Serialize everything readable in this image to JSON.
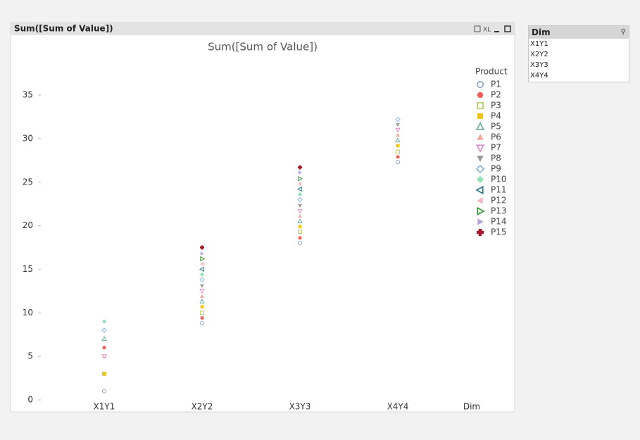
{
  "window_title": "Sum([Sum of Value])",
  "toolbar": {
    "xl_label": "XL"
  },
  "chart_data": {
    "type": "scatter",
    "title": "Sum([Sum of Value])",
    "x_label": "Dim",
    "legend_title": "Product",
    "categories": [
      "X1Y1",
      "X2Y2",
      "X3Y3",
      "X4Y4"
    ],
    "ylim": [
      0,
      38
    ],
    "yticks": [
      0,
      5,
      10,
      15,
      20,
      25,
      30,
      35
    ],
    "grid": false,
    "legend": "right",
    "series": [
      {
        "name": "P1",
        "color": "#8fa6c8",
        "marker": "circle-open",
        "values": [
          1.0,
          8.8,
          18.0,
          27.3
        ]
      },
      {
        "name": "P2",
        "color": "#f0605a",
        "marker": "circle",
        "values": [
          6.0,
          9.4,
          18.6,
          27.9
        ]
      },
      {
        "name": "P3",
        "color": "#b7c95c",
        "marker": "square-open",
        "values": [
          3.0,
          10.0,
          19.3,
          28.5
        ]
      },
      {
        "name": "P4",
        "color": "#f5c518",
        "marker": "square",
        "values": [
          3.0,
          10.7,
          19.9,
          29.2
        ]
      },
      {
        "name": "P5",
        "color": "#6aa79a",
        "marker": "triangle-up-open",
        "values": [
          7.0,
          11.3,
          20.5,
          29.8
        ]
      },
      {
        "name": "P6",
        "color": "#f0a8a0",
        "marker": "triangle-up",
        "values": [
          5.0,
          11.9,
          21.1,
          30.4
        ]
      },
      {
        "name": "P7",
        "color": "#e08cc8",
        "marker": "triangle-down-open",
        "values": [
          5.0,
          12.5,
          21.7,
          31.0
        ]
      },
      {
        "name": "P8",
        "color": "#9a9a9a",
        "marker": "triangle-down",
        "values": [
          null,
          13.1,
          22.3,
          31.6
        ]
      },
      {
        "name": "P9",
        "color": "#86b4d8",
        "marker": "diamond-open",
        "values": [
          8.0,
          13.8,
          23.0,
          32.2
        ]
      },
      {
        "name": "P10",
        "color": "#8fe0b4",
        "marker": "diamond",
        "values": [
          9.0,
          14.4,
          23.6,
          null
        ]
      },
      {
        "name": "P11",
        "color": "#2e7a8c",
        "marker": "triangle-left-open",
        "values": [
          null,
          15.0,
          24.2,
          null
        ]
      },
      {
        "name": "P12",
        "color": "#f4b8c0",
        "marker": "triangle-left",
        "values": [
          null,
          15.6,
          24.8,
          null
        ]
      },
      {
        "name": "P13",
        "color": "#3a9a3a",
        "marker": "triangle-right-open",
        "values": [
          null,
          16.2,
          25.4,
          null
        ]
      },
      {
        "name": "P14",
        "color": "#b8a8d8",
        "marker": "triangle-right",
        "values": [
          null,
          16.8,
          26.1,
          null
        ]
      },
      {
        "name": "P15",
        "color": "#a01c28",
        "marker": "plus",
        "values": [
          null,
          17.5,
          26.7,
          null
        ]
      }
    ]
  },
  "listbox": {
    "title": "Dim",
    "items": [
      "X1Y1",
      "X2Y2",
      "X3Y3",
      "X4Y4"
    ]
  }
}
